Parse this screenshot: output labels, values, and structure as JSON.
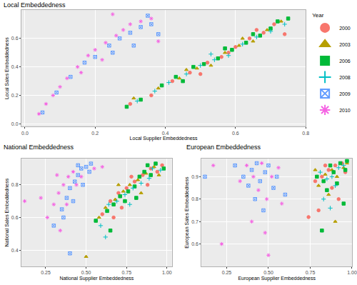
{
  "chart_data": [
    {
      "type": "scatter",
      "title": "Local Embeddedness",
      "x_label": "Local Supplier Embeddedness",
      "y_label": "Local Sales Embeddedness",
      "xlim": [
        -0.01,
        0.8
      ],
      "ylim": [
        -0.02,
        0.8
      ],
      "xticks": [
        {
          "value": 0,
          "label": "0.0"
        },
        0.2,
        0.4,
        0.6,
        0.8
      ],
      "yticks": [
        {
          "value": 0,
          "label": "0.0"
        },
        0.2,
        0.4,
        0.6
      ],
      "grid": true,
      "legend": "right",
      "legend_title": "Year",
      "series": [
        {
          "name": "2000",
          "color": "#F8766D",
          "marker": "circle",
          "x": [
            0.3,
            0.36,
            0.42,
            0.47,
            0.52,
            0.56,
            0.6,
            0.64,
            0.68,
            0.71,
            0.74,
            0.5,
            0.58,
            0.66
          ],
          "values": [
            0.14,
            0.2,
            0.3,
            0.36,
            0.43,
            0.47,
            0.54,
            0.6,
            0.64,
            0.7,
            0.63,
            0.35,
            0.5,
            0.66
          ]
        },
        {
          "name": "2003",
          "color": "#B79F00",
          "marker": "triangle",
          "x": [
            0.31,
            0.38,
            0.44,
            0.49,
            0.53,
            0.57,
            0.61,
            0.65,
            0.69,
            0.73,
            0.46,
            0.62
          ],
          "values": [
            0.18,
            0.25,
            0.32,
            0.39,
            0.41,
            0.5,
            0.55,
            0.58,
            0.66,
            0.72,
            0.38,
            0.6
          ]
        },
        {
          "name": "2006",
          "color": "#00BA38",
          "marker": "square",
          "x": [
            0.29,
            0.33,
            0.39,
            0.43,
            0.48,
            0.51,
            0.55,
            0.59,
            0.63,
            0.67,
            0.7,
            0.72,
            0.45,
            0.57,
            0.65,
            0.75
          ],
          "values": [
            0.12,
            0.17,
            0.27,
            0.33,
            0.4,
            0.42,
            0.46,
            0.52,
            0.57,
            0.62,
            0.67,
            0.72,
            0.3,
            0.53,
            0.63,
            0.74
          ]
        },
        {
          "name": "2008",
          "color": "#00BFC4",
          "marker": "plus",
          "x": [
            0.32,
            0.37,
            0.41,
            0.46,
            0.5,
            0.54,
            0.58,
            0.62,
            0.66,
            0.7,
            0.74,
            0.53
          ],
          "values": [
            0.16,
            0.23,
            0.29,
            0.35,
            0.41,
            0.45,
            0.48,
            0.56,
            0.61,
            0.65,
            0.7,
            0.49
          ]
        },
        {
          "name": "2009",
          "color": "#619CFF",
          "marker": "square-cross",
          "x": [
            0.05,
            0.09,
            0.13,
            0.17,
            0.2,
            0.24,
            0.27,
            0.3,
            0.33,
            0.36,
            0.38,
            0.31,
            0.25,
            0.35
          ],
          "values": [
            0.08,
            0.22,
            0.33,
            0.43,
            0.47,
            0.55,
            0.6,
            0.64,
            0.68,
            0.7,
            0.63,
            0.55,
            0.5,
            0.76
          ]
        },
        {
          "name": "2010",
          "color": "#F564E3",
          "marker": "asterisk",
          "x": [
            0.04,
            0.06,
            0.08,
            0.1,
            0.12,
            0.15,
            0.18,
            0.2,
            0.23,
            0.26,
            0.28,
            0.3,
            0.33,
            0.36,
            0.22,
            0.16,
            0.25,
            0.38
          ],
          "values": [
            0.07,
            0.14,
            0.2,
            0.26,
            0.32,
            0.4,
            0.48,
            0.52,
            0.57,
            0.62,
            0.66,
            0.7,
            0.72,
            0.74,
            0.45,
            0.36,
            0.77,
            0.58
          ]
        }
      ]
    },
    {
      "type": "scatter",
      "title": "National Embeddedness",
      "x_label": "National Supplier Embeddedness",
      "y_label": "National Sales Embeddedness",
      "xlim": [
        0.1,
        1.03
      ],
      "ylim": [
        0.3,
        0.96
      ],
      "xticks": [
        0.25,
        {
          "value": 0.5,
          "label": "0.50"
        },
        0.75,
        {
          "value": 1,
          "label": "1.00"
        }
      ],
      "yticks": [
        0.4,
        0.6,
        0.8
      ],
      "grid": true,
      "series": [
        {
          "name": "2000",
          "color": "#F8766D",
          "marker": "circle",
          "x": [
            0.6,
            0.65,
            0.7,
            0.75,
            0.8,
            0.85,
            0.9,
            0.94,
            0.88,
            0.72,
            0.78,
            0.67,
            0.97
          ],
          "values": [
            0.62,
            0.7,
            0.75,
            0.78,
            0.82,
            0.86,
            0.9,
            0.88,
            0.8,
            0.66,
            0.85,
            0.6,
            0.92
          ]
        },
        {
          "name": "2003",
          "color": "#B79F00",
          "marker": "triangle",
          "x": [
            0.58,
            0.62,
            0.68,
            0.73,
            0.77,
            0.82,
            0.87,
            0.92,
            0.95,
            0.7,
            0.84,
            0.5
          ],
          "values": [
            0.6,
            0.66,
            0.71,
            0.76,
            0.8,
            0.83,
            0.87,
            0.91,
            0.86,
            0.8,
            0.75,
            0.36
          ]
        },
        {
          "name": "2006",
          "color": "#00BA38",
          "marker": "square",
          "x": [
            0.56,
            0.63,
            0.67,
            0.71,
            0.76,
            0.8,
            0.83,
            0.86,
            0.9,
            0.93,
            0.98,
            0.74,
            0.81,
            0.65,
            0.88
          ],
          "values": [
            0.58,
            0.64,
            0.68,
            0.73,
            0.76,
            0.79,
            0.85,
            0.88,
            0.86,
            0.93,
            0.9,
            0.7,
            0.72,
            0.52,
            0.92
          ]
        },
        {
          "name": "2008",
          "color": "#00BFC4",
          "marker": "plus",
          "x": [
            0.59,
            0.64,
            0.69,
            0.74,
            0.79,
            0.84,
            0.89,
            0.91,
            0.96,
            0.77,
            0.62
          ],
          "values": [
            0.55,
            0.68,
            0.7,
            0.74,
            0.78,
            0.81,
            0.84,
            0.9,
            0.89,
            0.68,
            0.48
          ]
        },
        {
          "name": "2009",
          "color": "#619CFF",
          "marker": "square-cross",
          "x": [
            0.35,
            0.38,
            0.4,
            0.43,
            0.45,
            0.47,
            0.5,
            0.52,
            0.42,
            0.36,
            0.48,
            0.3,
            0.45,
            0.53,
            0.4
          ],
          "values": [
            0.65,
            0.72,
            0.78,
            0.82,
            0.86,
            0.9,
            0.91,
            0.88,
            0.7,
            0.6,
            0.8,
            0.55,
            0.92,
            0.93,
            0.38
          ]
        },
        {
          "name": "2010",
          "color": "#F564E3",
          "marker": "asterisk",
          "x": [
            0.22,
            0.26,
            0.3,
            0.33,
            0.36,
            0.39,
            0.42,
            0.44,
            0.34,
            0.55,
            0.6,
            0.47,
            0.38,
            0.12,
            0.32
          ],
          "values": [
            0.72,
            0.6,
            0.68,
            0.75,
            0.8,
            0.85,
            0.88,
            0.8,
            0.52,
            0.9,
            0.91,
            0.85,
            0.68,
            0.7,
            0.86
          ]
        }
      ]
    },
    {
      "type": "scatter",
      "title": "European Embeddedness",
      "x_label": "European Supplier Embeddedness",
      "y_label": "European Sales Embeddedness",
      "xlim": [
        0.1,
        1.0
      ],
      "ylim": [
        0.5,
        0.98
      ],
      "xticks": [
        0.25,
        {
          "value": 0.5,
          "label": "0.50"
        },
        0.75,
        {
          "value": 1,
          "label": "1.00"
        }
      ],
      "yticks": [
        0.6,
        0.7,
        0.8,
        0.9
      ],
      "grid": true,
      "series": [
        {
          "name": "2000",
          "color": "#F8766D",
          "marker": "circle",
          "x": [
            0.78,
            0.82,
            0.86,
            0.9,
            0.94,
            0.88,
            0.92,
            0.8,
            0.96,
            0.84,
            0.74
          ],
          "values": [
            0.88,
            0.9,
            0.93,
            0.95,
            0.96,
            0.85,
            0.8,
            0.75,
            0.92,
            0.95,
            0.72
          ]
        },
        {
          "name": "2003",
          "color": "#B79F00",
          "marker": "triangle",
          "x": [
            0.8,
            0.84,
            0.88,
            0.91,
            0.95,
            0.97,
            0.86,
            0.9,
            0.78
          ],
          "values": [
            0.86,
            0.91,
            0.93,
            0.9,
            0.94,
            0.96,
            0.82,
            0.7,
            0.93
          ]
        },
        {
          "name": "2006",
          "color": "#00BA38",
          "marker": "square",
          "x": [
            0.79,
            0.83,
            0.87,
            0.89,
            0.93,
            0.96,
            0.85,
            0.91,
            0.95,
            0.82,
            0.97
          ],
          "values": [
            0.9,
            0.88,
            0.95,
            0.92,
            0.96,
            0.93,
            0.84,
            0.87,
            0.78,
            0.66,
            0.97
          ]
        },
        {
          "name": "2008",
          "color": "#00BFC4",
          "marker": "plus",
          "x": [
            0.81,
            0.85,
            0.88,
            0.92,
            0.95,
            0.83,
            0.9,
            0.87
          ],
          "values": [
            0.92,
            0.89,
            0.9,
            0.94,
            0.95,
            0.8,
            0.86,
            0.76
          ]
        },
        {
          "name": "2009",
          "color": "#619CFF",
          "marker": "square-cross",
          "x": [
            0.35,
            0.4,
            0.43,
            0.45,
            0.48,
            0.5,
            0.53,
            0.42,
            0.38,
            0.55,
            0.47,
            0.3,
            0.12,
            0.6
          ],
          "values": [
            0.9,
            0.93,
            0.96,
            0.88,
            0.92,
            0.95,
            0.85,
            0.8,
            0.86,
            0.9,
            0.75,
            0.95,
            0.9,
            0.82
          ]
        },
        {
          "name": "2010",
          "color": "#F564E3",
          "marker": "asterisk",
          "x": [
            0.33,
            0.37,
            0.41,
            0.44,
            0.46,
            0.49,
            0.52,
            0.56,
            0.4,
            0.48,
            0.22,
            0.17,
            0.5,
            0.58
          ],
          "values": [
            0.88,
            0.95,
            0.9,
            0.84,
            0.96,
            0.8,
            0.9,
            0.94,
            0.7,
            0.65,
            0.6,
            0.95,
            0.55,
            0.78
          ]
        }
      ]
    }
  ]
}
